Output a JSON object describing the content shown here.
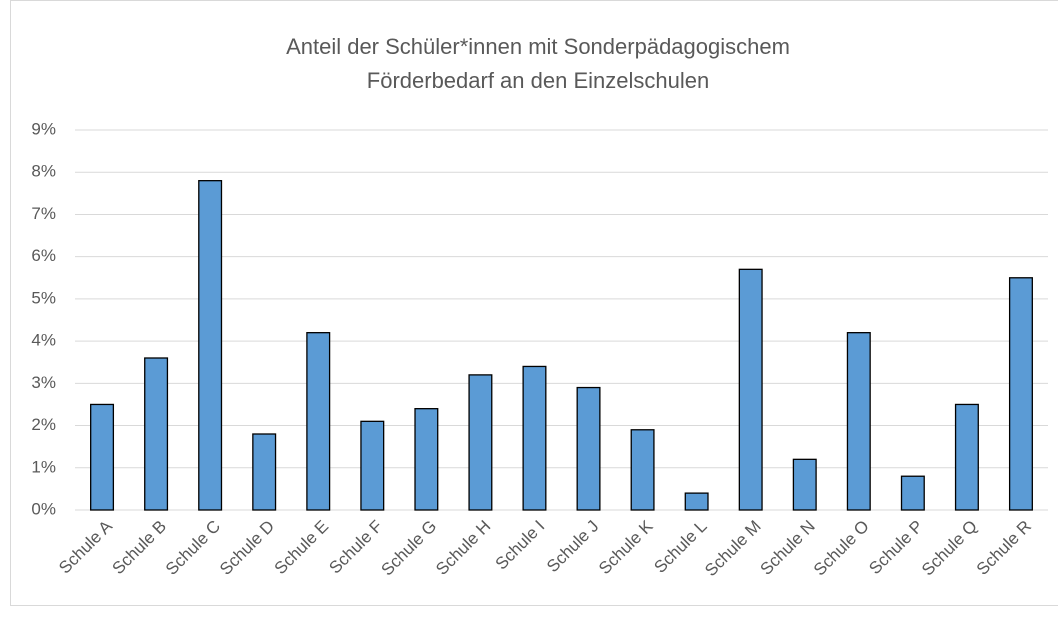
{
  "chart_data": {
    "type": "bar",
    "title": [
      "Anteil der Schüler*innen mit Sonderpädagogischem",
      "Förderbedarf an den Einzelschulen"
    ],
    "categories": [
      "Schule A",
      "Schule B",
      "Schule C",
      "Schule D",
      "Schule E",
      "Schule F",
      "Schule G",
      "Schule H",
      "Schule I",
      "Schule J",
      "Schule K",
      "Schule L",
      "Schule M",
      "Schule N",
      "Schule O",
      "Schule P",
      "Schule Q",
      "Schule R"
    ],
    "values": [
      2.5,
      3.6,
      7.8,
      1.8,
      4.2,
      2.1,
      2.4,
      3.2,
      3.4,
      2.9,
      1.9,
      0.4,
      5.7,
      1.2,
      4.2,
      0.8,
      2.5,
      5.5
    ],
    "color": "#5b9bd5",
    "ylim": [
      0,
      9
    ],
    "yticks": [
      {
        "value": 0,
        "label": "0%"
      },
      {
        "value": 1,
        "label": "1%"
      },
      {
        "value": 2,
        "label": "2%"
      },
      {
        "value": 3,
        "label": "3%"
      },
      {
        "value": 4,
        "label": "4%"
      },
      {
        "value": 5,
        "label": "5%"
      },
      {
        "value": 6,
        "label": "6%"
      },
      {
        "value": 7,
        "label": "7%"
      },
      {
        "value": 8,
        "label": "8%"
      },
      {
        "value": 9,
        "label": "9%"
      }
    ],
    "grid": true
  }
}
